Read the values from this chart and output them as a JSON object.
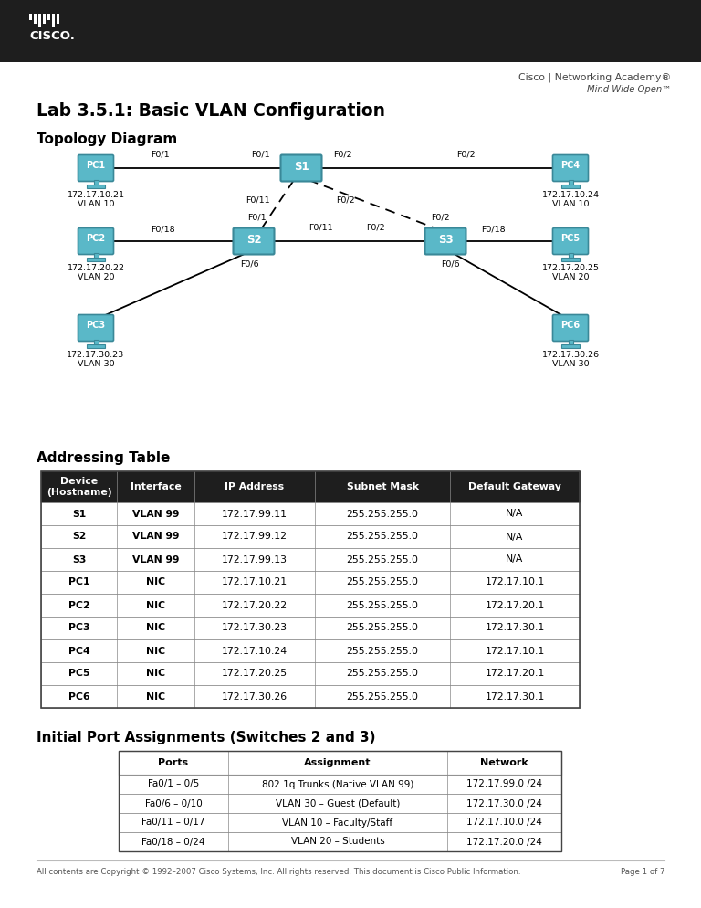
{
  "title": "Lab 3.5.1: Basic VLAN Configuration",
  "section1_title": "Topology Diagram",
  "section2_title": "Addressing Table",
  "section3_title": "Initial Port Assignments (Switches 2 and 3)",
  "cisco_academy_line1": "Cisco | Networking Academy®",
  "cisco_academy_line2": "Mind Wide Open™",
  "addressing_headers": [
    "Device\n(Hostname)",
    "Interface",
    "IP Address",
    "Subnet Mask",
    "Default Gateway"
  ],
  "addressing_rows": [
    [
      "S1",
      "VLAN 99",
      "172.17.99.11",
      "255.255.255.0",
      "N/A"
    ],
    [
      "S2",
      "VLAN 99",
      "172.17.99.12",
      "255.255.255.0",
      "N/A"
    ],
    [
      "S3",
      "VLAN 99",
      "172.17.99.13",
      "255.255.255.0",
      "N/A"
    ],
    [
      "PC1",
      "NIC",
      "172.17.10.21",
      "255.255.255.0",
      "172.17.10.1"
    ],
    [
      "PC2",
      "NIC",
      "172.17.20.22",
      "255.255.255.0",
      "172.17.20.1"
    ],
    [
      "PC3",
      "NIC",
      "172.17.30.23",
      "255.255.255.0",
      "172.17.30.1"
    ],
    [
      "PC4",
      "NIC",
      "172.17.10.24",
      "255.255.255.0",
      "172.17.10.1"
    ],
    [
      "PC5",
      "NIC",
      "172.17.20.25",
      "255.255.255.0",
      "172.17.20.1"
    ],
    [
      "PC6",
      "NIC",
      "172.17.30.26",
      "255.255.255.0",
      "172.17.30.1"
    ]
  ],
  "port_headers": [
    "Ports",
    "Assignment",
    "Network"
  ],
  "port_rows": [
    [
      "Fa0/1 – 0/5",
      "802.1q Trunks (Native VLAN 99)",
      "172.17.99.0 /24"
    ],
    [
      "Fa0/6 – 0/10",
      "VLAN 30 – Guest (Default)",
      "172.17.30.0 /24"
    ],
    [
      "Fa0/11 – 0/17",
      "VLAN 10 – Faculty/Staff",
      "172.17.10.0 /24"
    ],
    [
      "Fa0/18 – 0/24",
      "VLAN 20 – Students",
      "172.17.20.0 /24"
    ]
  ],
  "footer_text": "All contents are Copyright © 1992–2007 Cisco Systems, Inc. All rights reserved. This document is Cisco Public Information.",
  "footer_page": "Page 1 of 7",
  "pc_color": "#5ab8c8",
  "pc_border": "#3a8898",
  "switch_color": "#5ab8c8",
  "switch_border": "#3a8898"
}
